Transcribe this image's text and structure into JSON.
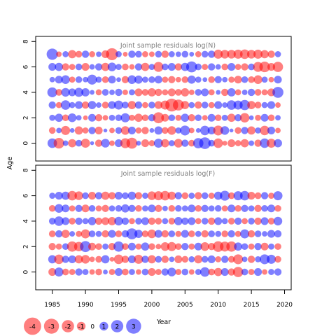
{
  "chart_data": {
    "type": "scatter",
    "ylabel": "Age",
    "xlabel": "Year",
    "x_ticks": [
      "1985",
      "1990",
      "1995",
      "2000",
      "2005",
      "2010",
      "2015",
      "2020"
    ],
    "y_ticks": [
      "0",
      "2",
      "4",
      "6",
      "8"
    ],
    "xlim": [
      1982.5,
      2021
    ],
    "ylim": [
      -1.4,
      8.4
    ],
    "years": [
      1985,
      1986,
      1987,
      1988,
      1989,
      1990,
      1991,
      1992,
      1993,
      1994,
      1995,
      1996,
      1997,
      1998,
      1999,
      2000,
      2001,
      2002,
      2003,
      2004,
      2005,
      2006,
      2007,
      2008,
      2009,
      2010,
      2011,
      2012,
      2013,
      2014,
      2015,
      2016,
      2017,
      2018,
      2019
    ],
    "ages": [
      0,
      1,
      2,
      3,
      4,
      5,
      6,
      7
    ],
    "colors": {
      "positive": "#0000ff",
      "negative": "#ff0000"
    },
    "panels": [
      {
        "title": "Joint sample residuals log(N)",
        "residuals": [
          [
            1.2,
            -1.5,
            0.4,
            -0.9,
            0.6,
            -1.1,
            0.2,
            -0.7,
            1.0,
            -0.4,
            0.8,
            -1.3,
            -1.6,
            0.3,
            -0.8,
            -0.5,
            1.1,
            -0.9,
            0.5,
            -1.0,
            0.7,
            -0.6,
            1.4,
            1.8,
            0.6,
            -1.2,
            -0.3,
            -0.8,
            -0.5,
            -0.9,
            0.4,
            -0.7,
            1.2,
            -1.1,
            0.9
          ],
          [
            -0.6,
            0.4,
            -1.1,
            0.3,
            -0.9,
            -0.5,
            0.7,
            -0.8,
            0.2,
            -0.4,
            0.6,
            -1.0,
            0.8,
            -0.5,
            -0.7,
            0.3,
            0.9,
            -0.6,
            -1.0,
            0.5,
            1.3,
            -0.4,
            0.3,
            1.2,
            0.8,
            -1.3,
            1.0,
            0.2,
            -0.6,
            0.7,
            -0.9,
            0.5,
            -1.2,
            0.8,
            -0.4
          ],
          [
            0.5,
            0.9,
            -0.6,
            1.0,
            0.4,
            -0.3,
            0.8,
            -0.7,
            -0.4,
            0.5,
            0.6,
            1.1,
            -0.5,
            -0.9,
            -0.6,
            0.7,
            -1.6,
            -0.8,
            0.6,
            -0.5,
            0.9,
            -0.7,
            0.6,
            -0.4,
            0.8,
            -0.6,
            0.5,
            -0.9,
            0.7,
            -1.2,
            0.3,
            -0.5,
            0.8,
            -0.6,
            0.4
          ],
          [
            0.7,
            -0.5,
            1.2,
            0.5,
            0.8,
            -0.7,
            0.9,
            0.4,
            -0.6,
            0.8,
            1.1,
            0.6,
            -0.9,
            0.7,
            -0.5,
            0.6,
            -0.8,
            -1.1,
            -2.2,
            -1.6,
            -0.9,
            0.5,
            -0.7,
            0.6,
            -0.5,
            0.8,
            0.4,
            1.2,
            1.1,
            1.4,
            -0.9,
            -0.6,
            0.5,
            0.8,
            -0.4
          ],
          [
            1.3,
            -0.6,
            1.0,
            0.8,
            1.1,
            0.9,
            0.3,
            -0.5,
            0.6,
            0.4,
            0.7,
            -0.4,
            0.5,
            -0.8,
            -0.6,
            -0.9,
            -0.7,
            -0.5,
            -0.8,
            -0.6,
            -0.9,
            -0.4,
            0.6,
            0.8,
            -0.5,
            0.3,
            -0.7,
            0.9,
            -0.5,
            0.4,
            0.7,
            -0.6,
            -0.5,
            -0.8,
            1.6
          ],
          [
            0.4,
            0.8,
            1.0,
            -0.5,
            0.6,
            0.4,
            1.3,
            0.5,
            -0.6,
            0.8,
            0.3,
            -0.7,
            1.0,
            0.9,
            0.5,
            0.6,
            0.8,
            -0.5,
            -0.7,
            -0.4,
            -0.6,
            0.9,
            0.5,
            0.3,
            -0.6,
            0.7,
            0.4,
            -0.5,
            -0.8,
            0.6,
            -0.6,
            -1.0,
            0.5,
            -0.4,
            0.8
          ],
          [
            0.8,
            0.9,
            -0.7,
            -0.5,
            0.6,
            -0.8,
            0.4,
            0.7,
            -0.9,
            1.0,
            0.5,
            -0.6,
            -0.4,
            0.7,
            -0.9,
            0.5,
            -1.3,
            0.6,
            0.8,
            -0.7,
            0.9,
            1.6,
            0.6,
            -0.5,
            0.7,
            0.4,
            -0.6,
            0.8,
            -0.5,
            -0.7,
            0.6,
            -1.3,
            -1.5,
            -0.8,
            -1.4
          ],
          [
            1.7,
            -0.4,
            0.5,
            -0.9,
            -0.6,
            0.7,
            -0.5,
            0.4,
            -0.8,
            -1.9,
            0.5,
            -0.3,
            0.7,
            0.6,
            -0.5,
            -0.4,
            0.6,
            -0.7,
            0.5,
            0.4,
            0.6,
            0.3,
            -0.5,
            0.6,
            0.7,
            -1.1,
            -1.0,
            -1.0,
            -1.1,
            -1.2,
            -1.0,
            -1.1,
            -0.9,
            -0.7,
            0.5
          ]
        ]
      },
      {
        "title": "Joint sample residuals log(F)",
        "residuals": [
          [
            -0.8,
            1.1,
            -0.6,
            -0.5,
            0.7,
            0.5,
            -0.4,
            -0.6,
            0.3,
            -0.5,
            0.8,
            -0.6,
            0.5,
            -0.4,
            0.6,
            -0.8,
            -0.5,
            0.7,
            1.0,
            -0.5,
            0.6,
            -0.4,
            0.5,
            1.2,
            -0.6,
            -0.9,
            0.8,
            -0.7,
            -1.4,
            0.6,
            -0.5,
            0.8,
            -0.4,
            0.5,
            0.7
          ],
          [
            0.9,
            -1.2,
            0.7,
            0.8,
            -0.9,
            -1.0,
            -0.4,
            -0.6,
            0.9,
            -0.3,
            -1.2,
            -0.7,
            0.8,
            -1.1,
            0.7,
            -0.9,
            0.6,
            -0.7,
            0.4,
            -0.8,
            -0.6,
            0.5,
            -0.9,
            0.6,
            0.8,
            -0.5,
            0.7,
            -0.6,
            -1.3,
            0.4,
            -0.7,
            0.5,
            1.3,
            1.1,
            -0.6
          ],
          [
            -0.7,
            -0.5,
            0.6,
            -1.4,
            -1.2,
            1.6,
            -0.8,
            -0.6,
            0.5,
            -0.7,
            1.4,
            -0.6,
            0.8,
            -0.5,
            0.9,
            -0.6,
            -0.4,
            -1.0,
            -1.1,
            -0.6,
            0.7,
            -0.5,
            0.8,
            -1.0,
            -0.7,
            -1.5,
            -1.3,
            -1.4,
            0.9,
            0.6,
            -0.5,
            0.7,
            -0.8,
            0.5,
            -0.6
          ],
          [
            -0.6,
            0.7,
            -0.9,
            0.4,
            -0.5,
            -1.1,
            0.6,
            0.5,
            -0.7,
            0.8,
            -0.6,
            0.7,
            1.6,
            0.9,
            -0.6,
            -1.0,
            0.8,
            -0.7,
            0.6,
            -0.5,
            0.8,
            -0.6,
            0.5,
            -0.7,
            0.6,
            0.5,
            -0.6,
            0.7,
            -0.5,
            1.1,
            -0.7,
            0.6,
            0.4,
            0.8,
            0.7
          ],
          [
            0.6,
            1.2,
            0.8,
            -0.6,
            0.7,
            0.5,
            0.9,
            -0.7,
            -0.8,
            -0.9,
            1.0,
            0.7,
            -0.5,
            0.6,
            0.8,
            -0.7,
            -0.6,
            0.5,
            -0.6,
            0.9,
            0.7,
            0.8,
            -0.5,
            0.6,
            -0.7,
            0.8,
            0.5,
            -0.6,
            0.7,
            -0.5,
            0.6,
            -0.7,
            0.8,
            -0.6,
            1.0
          ],
          [
            -0.6,
            1.0,
            0.8,
            -0.5,
            0.7,
            -0.8,
            0.6,
            -0.5,
            -0.7,
            0.5,
            0.6,
            0.9,
            0.7,
            -0.6,
            0.5,
            0.8,
            -0.7,
            0.4,
            -0.6,
            0.6,
            0.5,
            0.8,
            -0.6,
            0.7,
            0.5,
            0.6,
            -0.5,
            0.8,
            -0.6,
            0.7,
            0.5,
            -0.7,
            0.6,
            0.8,
            -0.6
          ],
          [
            0.5,
            0.8,
            0.9,
            -1.2,
            -1.0,
            0.6,
            -0.8,
            0.7,
            -0.9,
            -0.7,
            0.8,
            0.6,
            0.9,
            -0.7,
            0.5,
            -1.0,
            -1.1,
            -1.2,
            -0.9,
            0.7,
            -0.6,
            0.5,
            -0.7,
            0.6,
            -0.5,
            0.9,
            1.3,
            -0.6,
            1.1,
            1.2,
            -0.8,
            -0.6,
            0.7,
            -0.5,
            1.1
          ]
        ]
      }
    ],
    "legend": [
      "-4",
      "-3",
      "-2",
      "-1",
      "0",
      "1",
      "2",
      "3"
    ]
  }
}
